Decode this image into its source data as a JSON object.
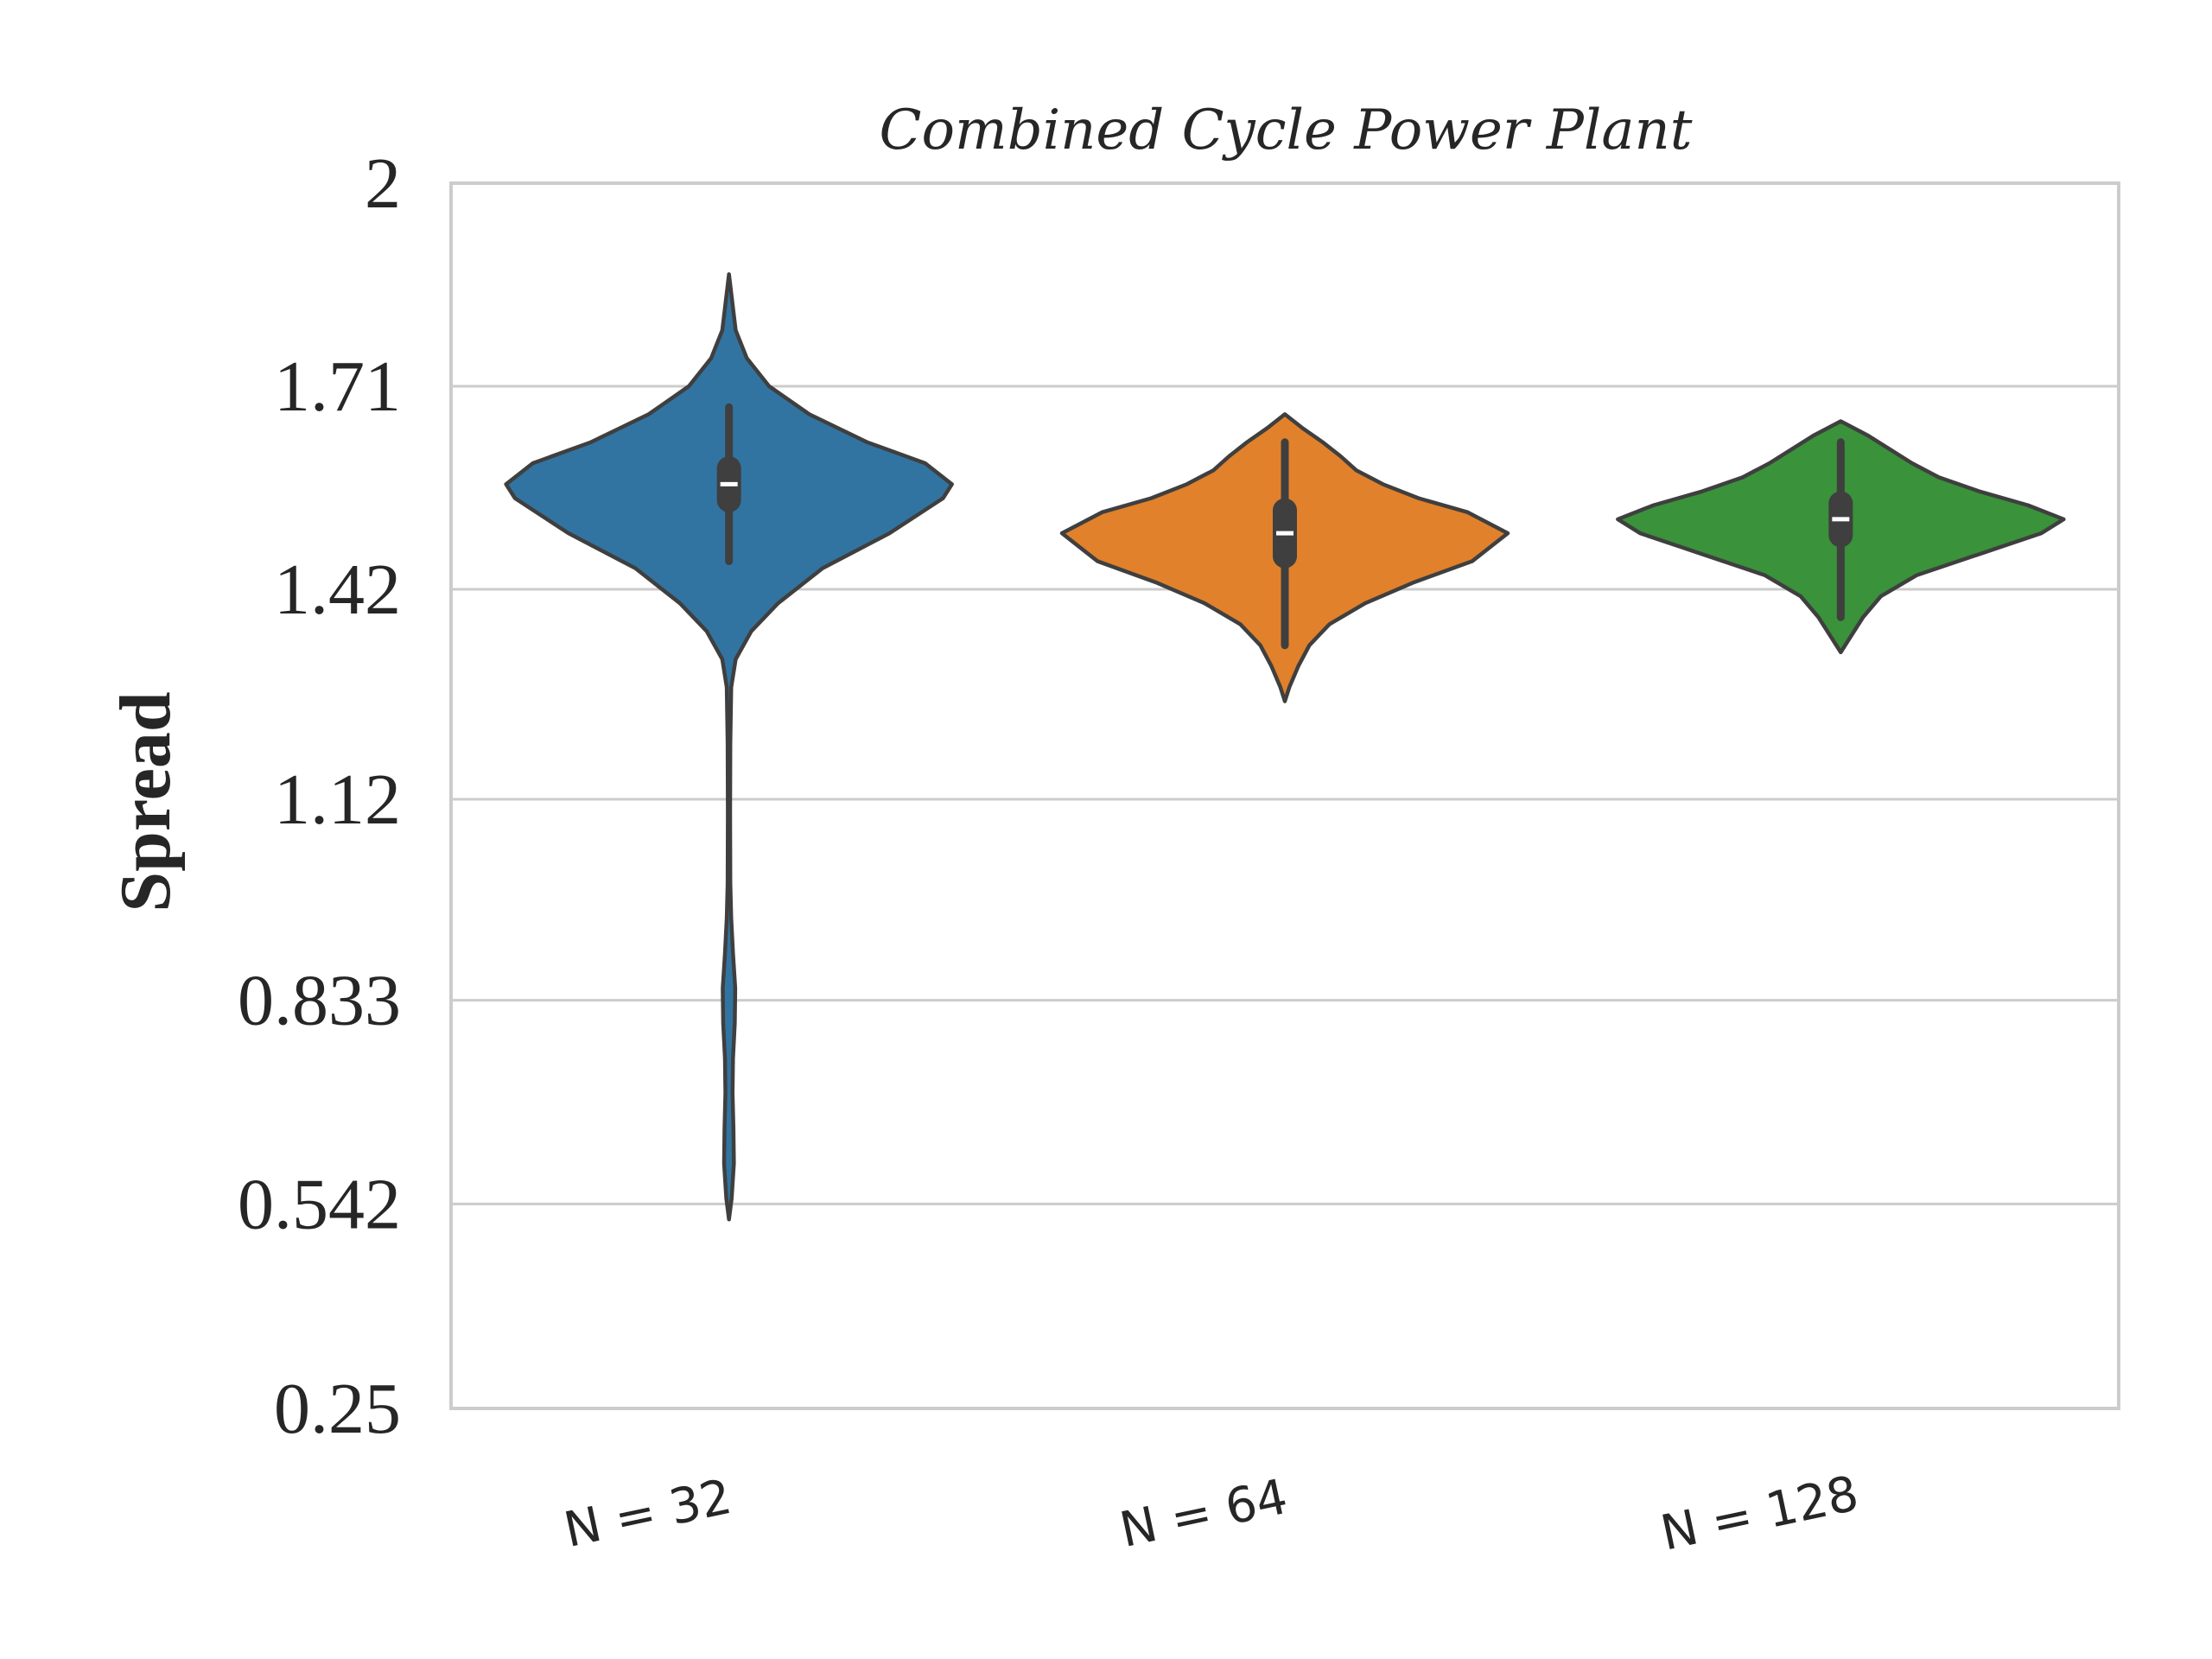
{
  "chart_data": {
    "type": "violin",
    "title": "Combined Cycle Power Plant",
    "xlabel": "",
    "ylabel": "Spread",
    "ylim": [
      0.25,
      2.0
    ],
    "yticks": [
      "0.25",
      "0.542",
      "0.833",
      "1.12",
      "1.42",
      "1.71",
      "2"
    ],
    "grid": "horizontal",
    "categories": [
      "N = 32",
      "N = 64",
      "N = 128"
    ],
    "violins": [
      {
        "category": "N = 32",
        "color": "#3274a1",
        "min": 0.52,
        "max": 1.87,
        "q1": 1.53,
        "median": 1.57,
        "q3": 1.61,
        "whisker_low": 1.46,
        "whisker_high": 1.68,
        "density": [
          [
            0.52,
            0.0
          ],
          [
            0.55,
            0.012
          ],
          [
            0.6,
            0.022
          ],
          [
            0.65,
            0.02
          ],
          [
            0.7,
            0.016
          ],
          [
            0.75,
            0.018
          ],
          [
            0.8,
            0.026
          ],
          [
            0.85,
            0.028
          ],
          [
            0.9,
            0.018
          ],
          [
            0.95,
            0.01
          ],
          [
            1.0,
            0.006
          ],
          [
            1.1,
            0.005
          ],
          [
            1.2,
            0.006
          ],
          [
            1.28,
            0.01
          ],
          [
            1.32,
            0.03
          ],
          [
            1.36,
            0.1
          ],
          [
            1.4,
            0.22
          ],
          [
            1.45,
            0.42
          ],
          [
            1.5,
            0.72
          ],
          [
            1.55,
            0.96
          ],
          [
            1.57,
            1.0
          ],
          [
            1.6,
            0.88
          ],
          [
            1.63,
            0.62
          ],
          [
            1.67,
            0.36
          ],
          [
            1.71,
            0.18
          ],
          [
            1.75,
            0.08
          ],
          [
            1.79,
            0.03
          ],
          [
            1.83,
            0.015
          ],
          [
            1.87,
            0.0
          ]
        ]
      },
      {
        "category": "N = 64",
        "color": "#e1812c",
        "min": 1.26,
        "max": 1.67,
        "q1": 1.45,
        "median": 1.5,
        "q3": 1.55,
        "whisker_low": 1.34,
        "whisker_high": 1.63,
        "density": [
          [
            1.26,
            0.0
          ],
          [
            1.28,
            0.02
          ],
          [
            1.31,
            0.06
          ],
          [
            1.34,
            0.11
          ],
          [
            1.37,
            0.2
          ],
          [
            1.4,
            0.36
          ],
          [
            1.43,
            0.58
          ],
          [
            1.46,
            0.84
          ],
          [
            1.5,
            1.0
          ],
          [
            1.53,
            0.82
          ],
          [
            1.55,
            0.6
          ],
          [
            1.57,
            0.44
          ],
          [
            1.59,
            0.32
          ],
          [
            1.61,
            0.25
          ],
          [
            1.63,
            0.17
          ],
          [
            1.65,
            0.08
          ],
          [
            1.67,
            0.0
          ]
        ]
      },
      {
        "category": "N = 128",
        "color": "#3a923a",
        "min": 1.33,
        "max": 1.66,
        "q1": 1.48,
        "median": 1.52,
        "q3": 1.56,
        "whisker_low": 1.38,
        "whisker_high": 1.63,
        "density": [
          [
            1.33,
            0.0
          ],
          [
            1.35,
            0.04
          ],
          [
            1.38,
            0.1
          ],
          [
            1.41,
            0.18
          ],
          [
            1.44,
            0.34
          ],
          [
            1.47,
            0.62
          ],
          [
            1.5,
            0.9
          ],
          [
            1.52,
            1.0
          ],
          [
            1.54,
            0.84
          ],
          [
            1.56,
            0.62
          ],
          [
            1.58,
            0.44
          ],
          [
            1.6,
            0.32
          ],
          [
            1.62,
            0.22
          ],
          [
            1.64,
            0.12
          ],
          [
            1.66,
            0.0
          ]
        ]
      }
    ]
  }
}
